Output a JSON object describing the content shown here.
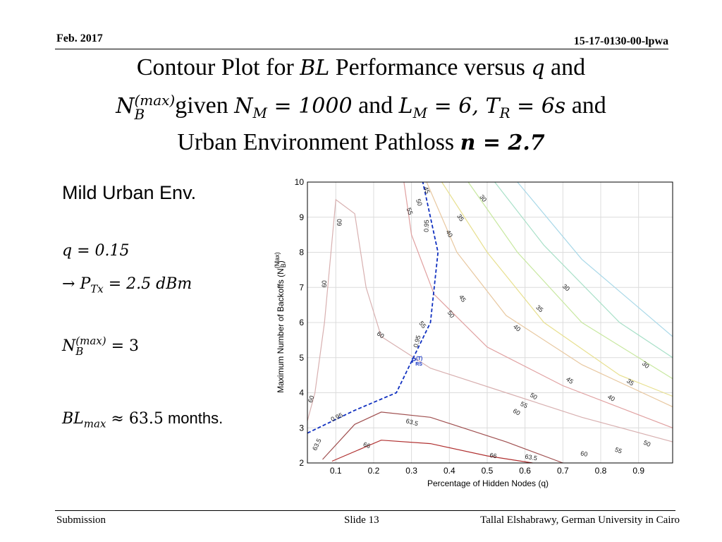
{
  "header": {
    "date": "Feb. 2017",
    "doc_id": "15-17-0130-00-lpwa"
  },
  "title": {
    "line1_a": "Contour Plot for ",
    "line1_bl": "BL",
    "line1_b": " Performance versus ",
    "line1_q": "q",
    "line1_c": " and",
    "line2_nb": "N",
    "line2_nb_sup": "(max)",
    "line2_nb_sub": "B",
    "line2_a": "given ",
    "line2_nm": "N",
    "line2_nm_sub": "M",
    "line2_nm_eq": " = 1000",
    "line2_b": " and ",
    "line2_lm": "L",
    "line2_lm_sub": "M",
    "line2_lm_eq": " = 6, ",
    "line2_tr": "T",
    "line2_tr_sub": "R",
    "line2_tr_eq": " = 6s",
    "line2_c": " and",
    "line3_a": "Urban Environment Pathloss ",
    "line3_n": "n = 2.7"
  },
  "side": {
    "heading": "Mild Urban Env.",
    "q_line": "q = 0.15",
    "arrow": "→",
    "p_sym": "P",
    "p_sub": "Tx",
    "p_eq": " = 2.5 dBm",
    "nb_sym": "N",
    "nb_sup": "(max)",
    "nb_sub": "B",
    "nb_eq": " = 3",
    "bl_sym": "BL",
    "bl_sub": "max",
    "bl_eq": " ≈ 63.5",
    "bl_unit": " months."
  },
  "footer": {
    "left": "Submission",
    "center": "Slide 13",
    "right": "Tallal Elshabrawy, German University in Cairo"
  },
  "chart_data": {
    "type": "contour",
    "xlabel": "Percentage of Hidden Nodes (q)",
    "ylabel": "Maximum Number of Backoffs (N_B^(Max))",
    "xlim": [
      0.025,
      0.99
    ],
    "ylim": [
      2,
      10
    ],
    "xticks": [
      "0.1",
      "0.2",
      "0.3",
      "0.4",
      "0.5",
      "0.6",
      "0.7",
      "0.8",
      "0.9"
    ],
    "xtick_values": [
      0.1,
      0.2,
      0.3,
      0.4,
      0.5,
      0.6,
      0.7,
      0.8,
      0.9
    ],
    "yticks": [
      "2",
      "3",
      "4",
      "5",
      "6",
      "7",
      "8",
      "9",
      "10"
    ],
    "ytick_values": [
      2,
      3,
      4,
      5,
      6,
      7,
      8,
      9,
      10
    ],
    "grid": true,
    "contours": [
      {
        "level": "60",
        "color": "#d8b0b0",
        "points": [
          [
            0.025,
            3.2
          ],
          [
            0.045,
            4.0
          ],
          [
            0.07,
            6.0
          ],
          [
            0.1,
            9.5
          ],
          [
            0.15,
            9.1
          ],
          [
            0.18,
            7.0
          ],
          [
            0.22,
            5.6
          ],
          [
            0.35,
            4.7
          ],
          [
            0.55,
            4.0
          ],
          [
            0.75,
            3.3
          ],
          [
            0.99,
            2.6
          ]
        ]
      },
      {
        "level": "63.5",
        "color": "#a05050",
        "points": [
          [
            0.065,
            2.1
          ],
          [
            0.15,
            3.1
          ],
          [
            0.22,
            3.45
          ],
          [
            0.35,
            3.3
          ],
          [
            0.55,
            2.6
          ],
          [
            0.7,
            2.0
          ]
        ]
      },
      {
        "level": "66",
        "color": "#b03030",
        "points": [
          [
            0.09,
            2.05
          ],
          [
            0.22,
            2.65
          ],
          [
            0.35,
            2.55
          ],
          [
            0.5,
            2.2
          ],
          [
            0.62,
            2.0
          ]
        ]
      },
      {
        "level": "55",
        "color": "#e0a0a0",
        "points": [
          [
            0.28,
            10.0
          ],
          [
            0.3,
            8.5
          ],
          [
            0.36,
            6.8
          ],
          [
            0.5,
            5.3
          ],
          [
            0.7,
            4.2
          ],
          [
            0.99,
            3.0
          ]
        ]
      },
      {
        "level": "50",
        "color": "#e8c8a0",
        "points": [
          [
            0.34,
            10.0
          ],
          [
            0.42,
            8.0
          ],
          [
            0.55,
            6.2
          ],
          [
            0.75,
            4.8
          ],
          [
            0.99,
            3.6
          ]
        ]
      },
      {
        "level": "45",
        "color": "#e8e090",
        "points": [
          [
            0.38,
            10.0
          ],
          [
            0.5,
            8.0
          ],
          [
            0.65,
            6.0
          ],
          [
            0.85,
            4.5
          ],
          [
            0.99,
            3.9
          ]
        ]
      },
      {
        "level": "40",
        "color": "#c8e8a0",
        "points": [
          [
            0.45,
            10.0
          ],
          [
            0.58,
            8.0
          ],
          [
            0.75,
            6.0
          ],
          [
            0.99,
            4.4
          ]
        ]
      },
      {
        "level": "35",
        "color": "#a8e0c8",
        "points": [
          [
            0.52,
            10.0
          ],
          [
            0.65,
            8.2
          ],
          [
            0.85,
            6.0
          ],
          [
            0.99,
            5.0
          ]
        ]
      },
      {
        "level": "30",
        "color": "#a8d8e8",
        "points": [
          [
            0.58,
            10.0
          ],
          [
            0.75,
            7.8
          ],
          [
            0.99,
            5.6
          ]
        ]
      }
    ],
    "boundary": {
      "label": "0.95",
      "color": "#1030c0",
      "points": [
        [
          0.025,
          2.85
        ],
        [
          0.15,
          3.5
        ],
        [
          0.26,
          4.0
        ],
        [
          0.35,
          6.0
        ],
        [
          0.37,
          8.0
        ],
        [
          0.33,
          10.0
        ]
      ]
    },
    "contour_labels": [
      {
        "text": "60",
        "x": 0.115,
        "y": 8.85,
        "rot": -90
      },
      {
        "text": "60",
        "x": 0.075,
        "y": 7.1,
        "rot": -90
      },
      {
        "text": "60",
        "x": 0.04,
        "y": 3.8,
        "rot": -70
      },
      {
        "text": "60",
        "x": 0.215,
        "y": 5.6,
        "rot": 35
      },
      {
        "text": "60",
        "x": 0.575,
        "y": 3.4,
        "rot": 30
      },
      {
        "text": "60",
        "x": 0.755,
        "y": 2.2,
        "rot": 10
      },
      {
        "text": "63.5",
        "x": 0.055,
        "y": 2.5,
        "rot": -65
      },
      {
        "text": "63.5",
        "x": 0.3,
        "y": 3.1,
        "rot": 15
      },
      {
        "text": "63.5",
        "x": 0.615,
        "y": 2.1,
        "rot": 10
      },
      {
        "text": "66",
        "x": 0.18,
        "y": 2.45,
        "rot": 20
      },
      {
        "text": "66",
        "x": 0.515,
        "y": 2.15,
        "rot": 10
      },
      {
        "text": "55",
        "x": 0.29,
        "y": 9.15,
        "rot": 70
      },
      {
        "text": "55",
        "x": 0.325,
        "y": 5.9,
        "rot": 50
      },
      {
        "text": "55",
        "x": 0.595,
        "y": 3.6,
        "rot": 25
      },
      {
        "text": "55",
        "x": 0.845,
        "y": 2.3,
        "rot": 20
      },
      {
        "text": "50",
        "x": 0.315,
        "y": 9.4,
        "rot": 70
      },
      {
        "text": "50",
        "x": 0.4,
        "y": 6.2,
        "rot": 55
      },
      {
        "text": "50",
        "x": 0.62,
        "y": 3.85,
        "rot": 30
      },
      {
        "text": "50",
        "x": 0.92,
        "y": 2.5,
        "rot": 25
      },
      {
        "text": "45",
        "x": 0.335,
        "y": 9.75,
        "rot": 70
      },
      {
        "text": "45",
        "x": 0.43,
        "y": 6.65,
        "rot": 55
      },
      {
        "text": "45",
        "x": 0.715,
        "y": 4.3,
        "rot": 35
      },
      {
        "text": "40",
        "x": 0.395,
        "y": 8.5,
        "rot": 60
      },
      {
        "text": "40",
        "x": 0.575,
        "y": 5.8,
        "rot": 40
      },
      {
        "text": "40",
        "x": 0.825,
        "y": 3.8,
        "rot": 30
      },
      {
        "text": "35",
        "x": 0.425,
        "y": 8.95,
        "rot": 55
      },
      {
        "text": "35",
        "x": 0.635,
        "y": 6.35,
        "rot": 40
      },
      {
        "text": "35",
        "x": 0.875,
        "y": 4.25,
        "rot": 35
      },
      {
        "text": "30",
        "x": 0.485,
        "y": 9.5,
        "rot": 50
      },
      {
        "text": "30",
        "x": 0.705,
        "y": 6.95,
        "rot": 40
      },
      {
        "text": "30",
        "x": 0.915,
        "y": 4.75,
        "rot": 40
      },
      {
        "text": "0.95",
        "x": 0.345,
        "y": 8.75,
        "rot": -88
      },
      {
        "text": "0.95",
        "x": 0.32,
        "y": 5.45,
        "rot": -75
      },
      {
        "text": "0.95",
        "x": 0.105,
        "y": 3.25,
        "rot": -25
      }
    ],
    "annotation": {
      "text": "P",
      "sup": "(T)",
      "sub": "RS",
      "x": 0.3,
      "y": 4.85
    }
  }
}
